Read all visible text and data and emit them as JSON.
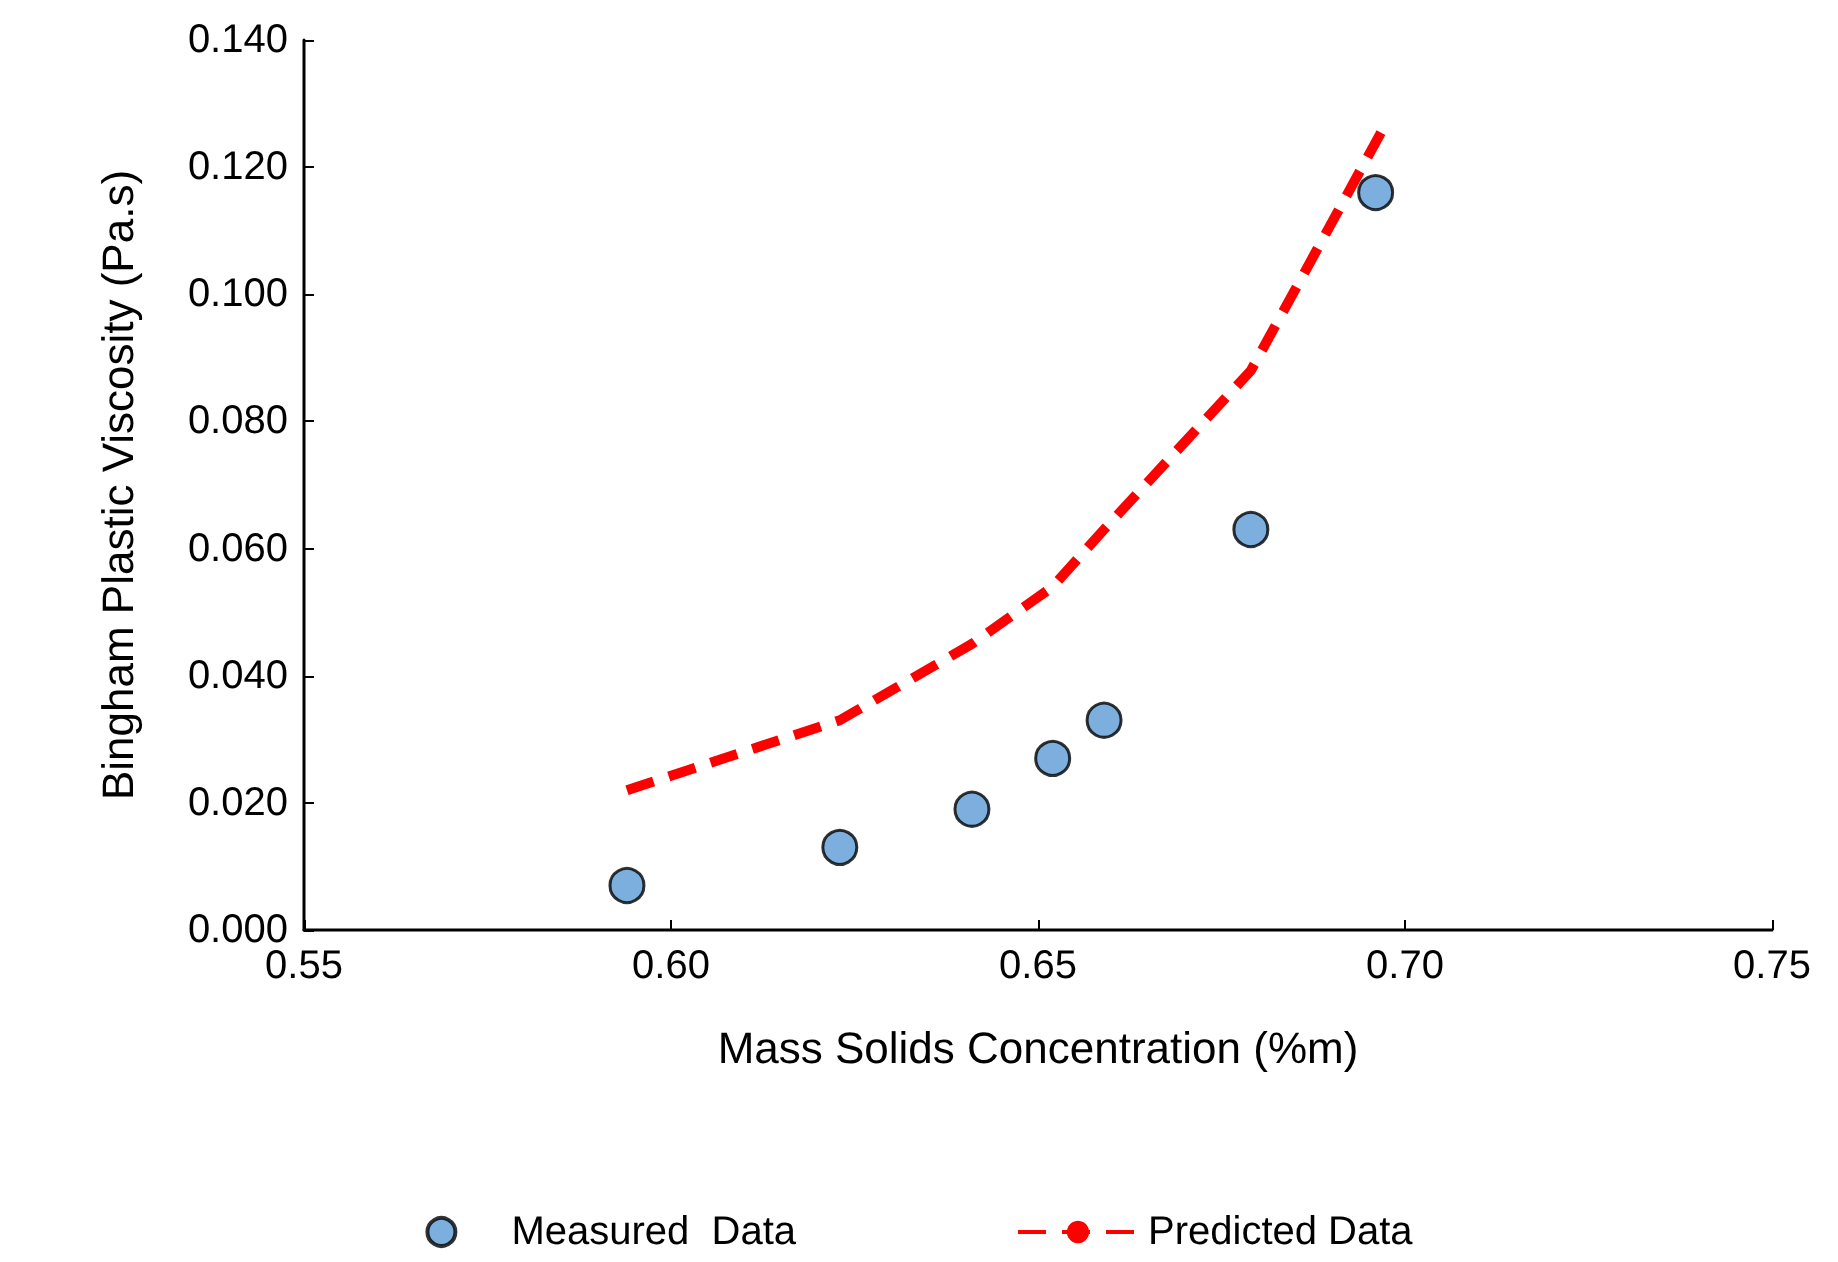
{
  "chart_data": {
    "type": "scatter",
    "xlabel": "Mass Solids Concentration (%m)",
    "ylabel": "Bingham Plastic Viscosity (Pa.s)",
    "xlim": [
      0.55,
      0.75
    ],
    "xticks": [
      {
        "value": 0.55,
        "label": "0.55"
      },
      {
        "value": 0.6,
        "label": "0.60"
      },
      {
        "value": 0.65,
        "label": "0.65"
      },
      {
        "value": 0.7,
        "label": "0.70"
      },
      {
        "value": 0.75,
        "label": "0.75"
      }
    ],
    "ylim": [
      0,
      0.14
    ],
    "yticks": [
      {
        "value": 0,
        "label": "0.000"
      },
      {
        "value": 0.02,
        "label": "0.020"
      },
      {
        "value": 0.04,
        "label": "0.040"
      },
      {
        "value": 0.06,
        "label": "0.060"
      },
      {
        "value": 0.08,
        "label": "0.080"
      },
      {
        "value": 0.1,
        "label": "0.100"
      },
      {
        "value": 0.12,
        "label": "0.120"
      },
      {
        "value": 0.14,
        "label": "0.140"
      }
    ],
    "grid": false,
    "legend": "bottom",
    "series": [
      {
        "name": "Measured  Data",
        "marker": "circle",
        "color": "#5b9bd5",
        "x": [
          0.594,
          0.623,
          0.641,
          0.652,
          0.659,
          0.679,
          0.696
        ],
        "values": [
          0.007,
          0.013,
          0.019,
          0.027,
          0.033,
          0.063,
          0.116
        ]
      },
      {
        "name": "Predicted Data",
        "type": "line",
        "line_style": "dashed",
        "marker": "none",
        "color": "#ff0000",
        "x": [
          0.594,
          0.623,
          0.641,
          0.652,
          0.659,
          0.679,
          0.697
        ],
        "values": [
          0.022,
          0.033,
          0.045,
          0.054,
          0.063,
          0.088,
          0.126
        ]
      }
    ]
  }
}
